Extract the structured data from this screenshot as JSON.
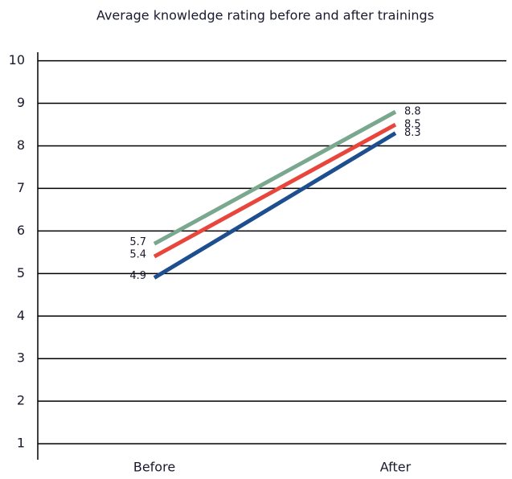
{
  "chart_data": {
    "type": "line",
    "title": "Average knowledge rating before and after trainings",
    "categories": [
      "Before",
      "After"
    ],
    "series": [
      {
        "color": "#7aa88f",
        "values": [
          5.7,
          8.8
        ]
      },
      {
        "color": "#e8463c",
        "values": [
          5.4,
          8.5
        ]
      },
      {
        "color": "#1d4e8f",
        "values": [
          4.9,
          8.3
        ]
      }
    ],
    "ylim": [
      0.7,
      10.2
    ],
    "yticks": [
      1,
      2,
      3,
      4,
      5,
      6,
      7,
      8,
      9,
      10
    ],
    "grid": true
  }
}
